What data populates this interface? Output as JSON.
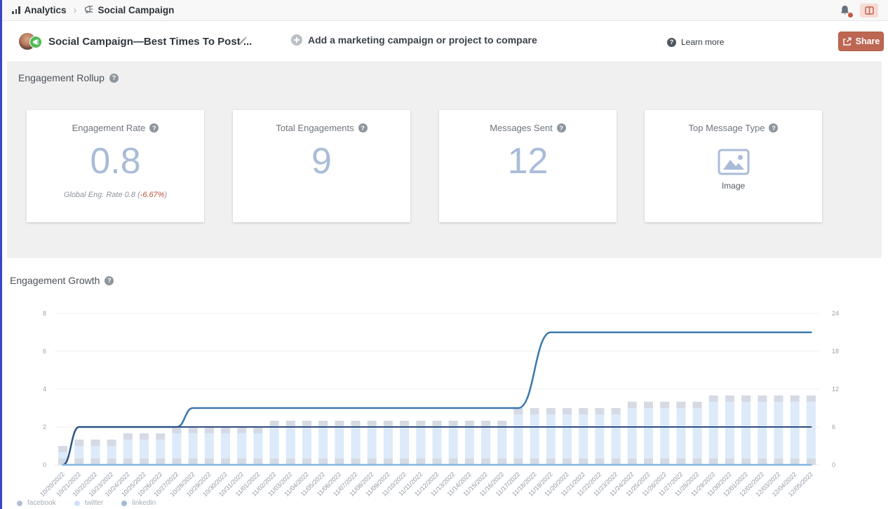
{
  "topbar": {
    "breadcrumb": [
      {
        "label": "Analytics"
      },
      {
        "label": "Social Campaign"
      }
    ]
  },
  "toolbar": {
    "campaign_title": "Social Campaign—Best Times To Post ...",
    "add_compare_label": "Add a marketing campaign or project to compare",
    "learn_more_label": "Learn more",
    "share_label": "Share"
  },
  "rollup": {
    "section_title": "Engagement Rollup",
    "cards": [
      {
        "label": "Engagement Rate",
        "value": "0.8",
        "subtitle_prefix": "Global Eng. Rate 0.8 (",
        "subtitle_delta": "-6.67%",
        "subtitle_suffix": ")"
      },
      {
        "label": "Total Engagements",
        "value": "9"
      },
      {
        "label": "Messages Sent",
        "value": "12"
      },
      {
        "label": "Top Message Type",
        "value_label": "Image"
      }
    ]
  },
  "growth": {
    "section_title": "Engagement Growth"
  },
  "colors": {
    "share_button": "#bd6753",
    "metric_number": "#a9bcd8",
    "notification_dot": "#c75a40",
    "left_strip": "#3a46c8"
  },
  "chart_data": {
    "type": "bar",
    "subtype": "stacked bars (right axis) + cumulative lines (left axis)",
    "title": "Engagement Growth",
    "grid": true,
    "legend_position": "bottom-left",
    "x": [
      "10/20/2022",
      "10/21/2022",
      "10/22/2022",
      "10/23/2022",
      "10/24/2022",
      "10/25/2022",
      "10/26/2022",
      "10/27/2022",
      "10/28/2022",
      "10/29/2022",
      "10/30/2022",
      "10/31/2022",
      "11/01/2022",
      "11/02/2022",
      "11/03/2022",
      "11/04/2022",
      "11/05/2022",
      "11/06/2022",
      "11/07/2022",
      "11/08/2022",
      "11/09/2022",
      "11/10/2022",
      "11/11/2022",
      "11/12/2022",
      "11/13/2022",
      "11/14/2022",
      "11/15/2022",
      "11/16/2022",
      "11/17/2022",
      "11/18/2022",
      "11/19/2022",
      "11/20/2022",
      "11/21/2022",
      "11/22/2022",
      "11/23/2022",
      "11/24/2022",
      "11/25/2022",
      "11/26/2022",
      "11/27/2022",
      "11/28/2022",
      "11/29/2022",
      "11/30/2022",
      "12/01/2022",
      "12/02/2022",
      "12/03/2022",
      "12/04/2022",
      "12/05/2022"
    ],
    "left_axis": {
      "ticks": [
        0,
        2,
        4,
        6,
        8
      ],
      "range": [
        0,
        8
      ]
    },
    "right_axis": {
      "ticks": [
        0,
        6,
        12,
        18,
        24
      ],
      "range": [
        0,
        24
      ]
    },
    "bars": {
      "axis": "right",
      "stacked": true,
      "series": [
        {
          "name": "facebook",
          "color": "#c7cedb",
          "opacity": 0.75,
          "values": [
            1,
            1,
            1,
            1,
            1,
            1,
            1,
            1,
            1,
            1,
            1,
            1,
            1,
            1,
            1,
            1,
            1,
            1,
            1,
            1,
            1,
            1,
            1,
            1,
            1,
            1,
            1,
            1,
            1,
            1,
            1,
            1,
            1,
            1,
            1,
            1,
            1,
            1,
            1,
            1,
            1,
            1,
            1,
            1,
            1,
            1,
            1
          ]
        },
        {
          "name": "twitter",
          "color": "#d9e8f8",
          "opacity": 0.9,
          "values": [
            1,
            2,
            2,
            2,
            3,
            3,
            3,
            4,
            4,
            4,
            4,
            4,
            4,
            5,
            5,
            5,
            5,
            5,
            5,
            5,
            5,
            5,
            5,
            5,
            5,
            5,
            5,
            5,
            7,
            7,
            7,
            7,
            7,
            7,
            7,
            8,
            8,
            8,
            8,
            8,
            9,
            9,
            9,
            9,
            9,
            9,
            9
          ]
        },
        {
          "name": "linkedin",
          "color": "#c7cedb",
          "opacity": 0.75,
          "values": [
            1,
            1,
            1,
            1,
            1,
            1,
            1,
            1,
            1,
            1,
            1,
            1,
            1,
            1,
            1,
            1,
            1,
            1,
            1,
            1,
            1,
            1,
            1,
            1,
            1,
            1,
            1,
            1,
            1,
            1,
            1,
            1,
            1,
            1,
            1,
            1,
            1,
            1,
            1,
            1,
            1,
            1,
            1,
            1,
            1,
            1,
            1
          ]
        }
      ]
    },
    "lines": {
      "axis": "left",
      "series": [
        {
          "name": "facebook",
          "color": "#3b78ae",
          "values": [
            0,
            2,
            2,
            2,
            2,
            2,
            2,
            2,
            3,
            3,
            3,
            3,
            3,
            3,
            3,
            3,
            3,
            3,
            3,
            3,
            3,
            3,
            3,
            3,
            3,
            3,
            3,
            3,
            3,
            5,
            7,
            7,
            7,
            7,
            7,
            7,
            7,
            7,
            7,
            7,
            7,
            7,
            7,
            7,
            7,
            7,
            7
          ]
        },
        {
          "name": "twitter",
          "color": "#2d4e7e",
          "values": [
            0,
            2,
            2,
            2,
            2,
            2,
            2,
            2,
            2,
            2,
            2,
            2,
            2,
            2,
            2,
            2,
            2,
            2,
            2,
            2,
            2,
            2,
            2,
            2,
            2,
            2,
            2,
            2,
            2,
            2,
            2,
            2,
            2,
            2,
            2,
            2,
            2,
            2,
            2,
            2,
            2,
            2,
            2,
            2,
            2,
            2,
            2
          ]
        },
        {
          "name": "linkedin",
          "color": "#84b5e2",
          "values": [
            0,
            0,
            0,
            0,
            0,
            0,
            0,
            0,
            0,
            0,
            0,
            0,
            0,
            0,
            0,
            0,
            0,
            0,
            0,
            0,
            0,
            0,
            0,
            0,
            0,
            0,
            0,
            0,
            0,
            0,
            0,
            0,
            0,
            0,
            0,
            0,
            0,
            0,
            0,
            0,
            0,
            0,
            0,
            0,
            0,
            0,
            0
          ]
        }
      ]
    },
    "legend": [
      {
        "label": "facebook",
        "color": "#b3c0d3"
      },
      {
        "label": "twitter",
        "color": "#cfe3f7"
      },
      {
        "label": "linkedin",
        "color": "#a3b9d9"
      }
    ]
  }
}
